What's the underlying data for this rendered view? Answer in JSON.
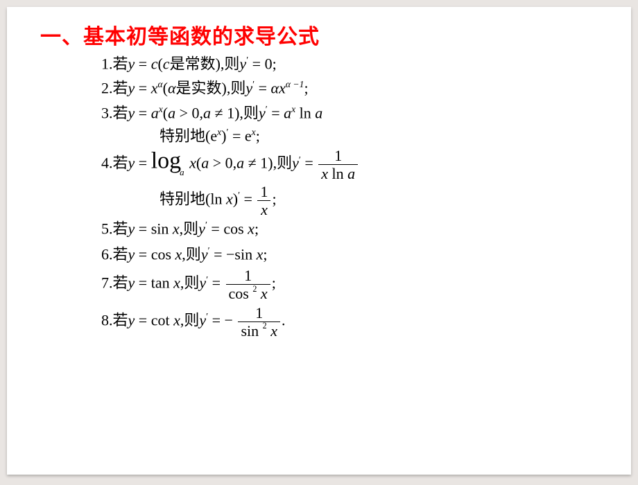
{
  "colors": {
    "title": "#ff0000",
    "text": "#000000",
    "page_bg": "#ffffff",
    "outer_bg": "#e9e5e2"
  },
  "fonts": {
    "title_family": "SimHei",
    "title_size_pt": 22,
    "body_family": "Times New Roman / SimSun",
    "body_size_pt": 16
  },
  "title": "一、基本初等函数的求导公式",
  "t": {
    "p1a": "1.",
    "ruo": "若",
    "shi_changshu": "是常数",
    "ze": "则",
    "p2a": "2.",
    "shi_shishu": "是实数",
    "p3a": "3.",
    "tebiedi": "特别地",
    "p4a": "4.",
    "p5a": "5.",
    "p6a": "6.",
    "p7a": "7.",
    "p8a": "8.",
    "y": "y",
    "x": "x",
    "a": "a",
    "c": "c",
    "alpha": "α",
    "eq": " = ",
    "lp": "(",
    "rp": ")",
    "comma": ",",
    "semi": ";",
    "dot": ".",
    "gt0": " > 0",
    "ne1": " ≠ 1",
    "prime": "′",
    "zero": "0",
    "am1": "α −1",
    "ln": "ln ",
    "lna": "ln ",
    "log": "log",
    "e": "e",
    "sin": "sin ",
    "cos": "cos ",
    "tan": "tan ",
    "cot": "cot ",
    "one": "1",
    "two": "2",
    "minus": "−",
    "sp": " "
  }
}
